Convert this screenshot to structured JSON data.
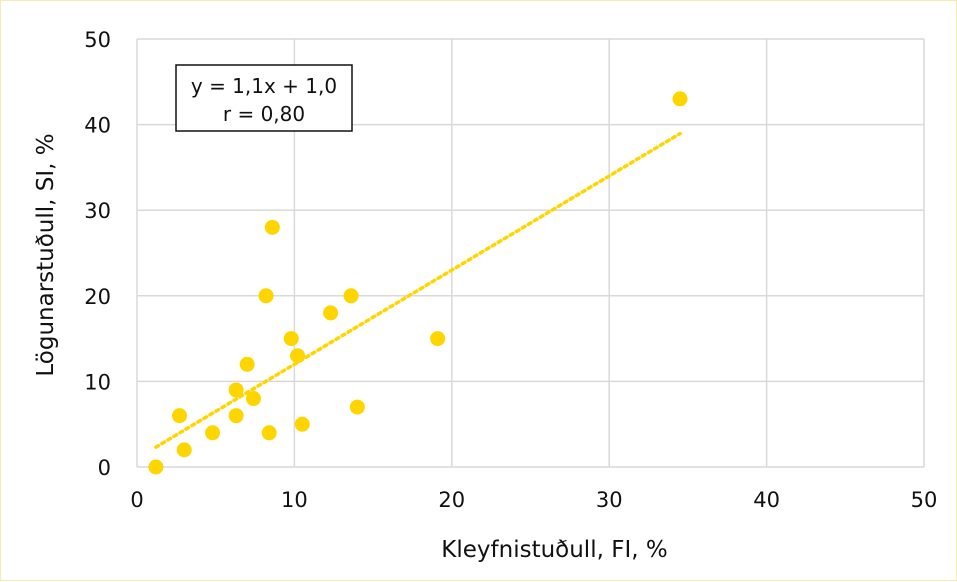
{
  "chart_data": {
    "type": "scatter",
    "title": "",
    "xlabel": "Kleyfnistuðull, FI, %",
    "ylabel": "Lögunarstuðull, SI, %",
    "xlim": [
      0,
      50
    ],
    "ylim": [
      0,
      50
    ],
    "xticks": [
      "0",
      "10",
      "20",
      "30",
      "40",
      "50"
    ],
    "yticks": [
      "0",
      "10",
      "20",
      "30",
      "40",
      "50"
    ],
    "grid": true,
    "legend": "none",
    "marker_color": "#FFD500",
    "trendline_color": "#FFD500",
    "series": [
      {
        "points": [
          {
            "x": 1.2,
            "y": 0
          },
          {
            "x": 2.7,
            "y": 6
          },
          {
            "x": 3.0,
            "y": 2
          },
          {
            "x": 4.8,
            "y": 4
          },
          {
            "x": 6.3,
            "y": 9
          },
          {
            "x": 6.3,
            "y": 6
          },
          {
            "x": 7.0,
            "y": 12
          },
          {
            "x": 7.4,
            "y": 8
          },
          {
            "x": 8.2,
            "y": 20
          },
          {
            "x": 8.4,
            "y": 4
          },
          {
            "x": 8.6,
            "y": 28
          },
          {
            "x": 9.8,
            "y": 15
          },
          {
            "x": 10.2,
            "y": 13
          },
          {
            "x": 10.5,
            "y": 5
          },
          {
            "x": 12.3,
            "y": 18
          },
          {
            "x": 13.6,
            "y": 20
          },
          {
            "x": 14.0,
            "y": 7
          },
          {
            "x": 19.1,
            "y": 15
          },
          {
            "x": 34.5,
            "y": 43
          }
        ]
      }
    ],
    "trendline": {
      "slope": 1.1,
      "intercept": 1.0,
      "x_from": 1.2,
      "x_to": 34.5,
      "style": "dotted"
    },
    "annotation": {
      "lines": [
        "y = 1,1x + 1,0",
        "r = 0,80"
      ]
    }
  }
}
